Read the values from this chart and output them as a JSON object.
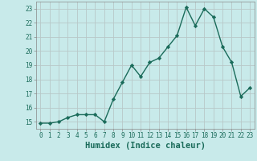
{
  "x": [
    0,
    1,
    2,
    3,
    4,
    5,
    6,
    7,
    8,
    9,
    10,
    11,
    12,
    13,
    14,
    15,
    16,
    17,
    18,
    19,
    20,
    21,
    22,
    23
  ],
  "y": [
    14.9,
    14.9,
    15.0,
    15.3,
    15.5,
    15.5,
    15.5,
    15.0,
    16.6,
    17.8,
    19.0,
    18.2,
    19.2,
    19.5,
    20.3,
    21.1,
    23.1,
    21.8,
    23.0,
    22.4,
    20.3,
    19.2,
    16.8,
    17.4
  ],
  "line_color": "#1a6b5a",
  "marker": "D",
  "marker_size": 2.2,
  "bg_color": "#c8eaea",
  "grid_color": "#b8c8c8",
  "xlabel": "Humidex (Indice chaleur)",
  "xlim": [
    -0.5,
    23.5
  ],
  "ylim": [
    14.5,
    23.5
  ],
  "yticks": [
    15,
    16,
    17,
    18,
    19,
    20,
    21,
    22,
    23
  ],
  "xticks": [
    0,
    1,
    2,
    3,
    4,
    5,
    6,
    7,
    8,
    9,
    10,
    11,
    12,
    13,
    14,
    15,
    16,
    17,
    18,
    19,
    20,
    21,
    22,
    23
  ],
  "tick_fontsize": 5.5,
  "xlabel_fontsize": 7.5,
  "line_width": 1.0
}
